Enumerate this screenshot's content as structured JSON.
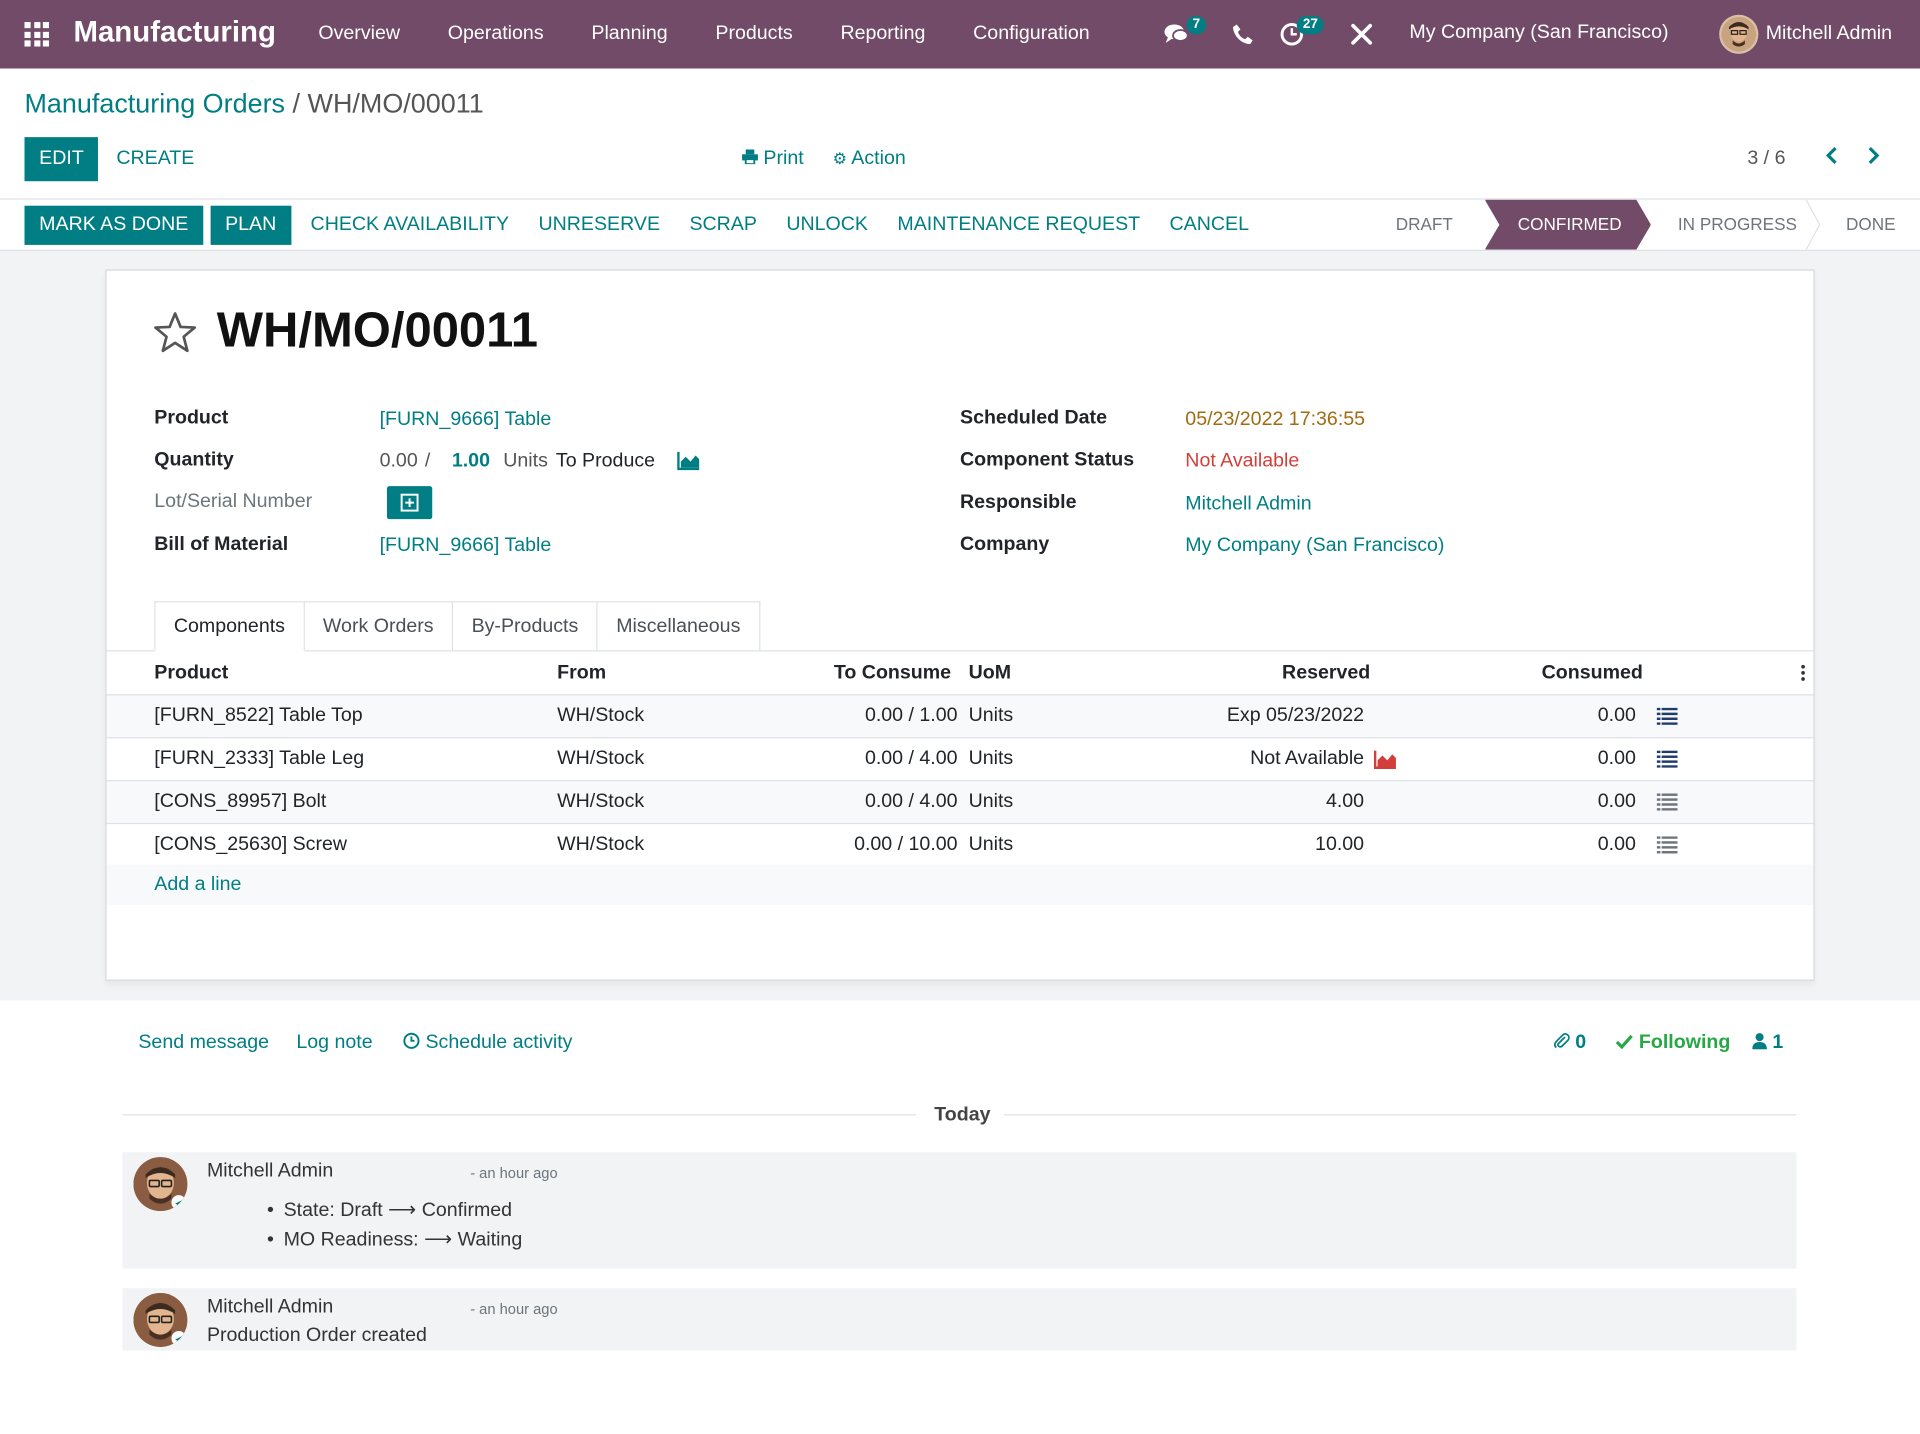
{
  "navbar": {
    "app_name": "Manufacturing",
    "menu": [
      "Overview",
      "Operations",
      "Planning",
      "Products",
      "Reporting",
      "Configuration"
    ],
    "messages_count": "7",
    "activities_count": "27",
    "company": "My Company (San Francisco)",
    "user": "Mitchell Admin"
  },
  "breadcrumb": {
    "parent": "Manufacturing Orders",
    "separator": "/",
    "current": "WH/MO/00011"
  },
  "toolbar": {
    "edit": "EDIT",
    "create": "CREATE",
    "print": "Print",
    "action": "Action",
    "pager": "3 / 6"
  },
  "statusbar": {
    "buttons": [
      "MARK AS DONE",
      "PLAN",
      "CHECK AVAILABILITY",
      "UNRESERVE",
      "SCRAP",
      "UNLOCK",
      "MAINTENANCE REQUEST",
      "CANCEL"
    ],
    "stages": [
      "DRAFT",
      "CONFIRMED",
      "IN PROGRESS",
      "DONE"
    ],
    "active_stage": "CONFIRMED"
  },
  "form": {
    "name": "WH/MO/00011",
    "product_label": "Product",
    "product": "[FURN_9666] Table",
    "quantity_label": "Quantity",
    "qty_produced": "0.00",
    "qty_sep": "/",
    "qty_total": "1.00",
    "uom": "Units",
    "to_produce": "To Produce",
    "lot_label": "Lot/Serial Number",
    "bom_label": "Bill of Material",
    "bom": "[FURN_9666] Table",
    "scheduled_label": "Scheduled Date",
    "scheduled": "05/23/2022 17:36:55",
    "component_status_label": "Component Status",
    "component_status": "Not Available",
    "responsible_label": "Responsible",
    "responsible": "Mitchell Admin",
    "company_label": "Company",
    "company": "My Company (San Francisco)"
  },
  "tabs": [
    "Components",
    "Work Orders",
    "By-Products",
    "Miscellaneous"
  ],
  "components": {
    "headers": {
      "product": "Product",
      "from": "From",
      "to_consume": "To Consume",
      "uom": "UoM",
      "reserved": "Reserved",
      "consumed": "Consumed"
    },
    "rows": [
      {
        "product": "[FURN_8522] Table Top",
        "from": "WH/Stock",
        "to_consume": "0.00 / 1.00",
        "uom": "Units",
        "reserved": "Exp 05/23/2022",
        "consumed": "0.00"
      },
      {
        "product": "[FURN_2333] Table Leg",
        "from": "WH/Stock",
        "to_consume": "0.00 / 4.00",
        "uom": "Units",
        "reserved": "Not Available",
        "consumed": "0.00"
      },
      {
        "product": "[CONS_89957] Bolt",
        "from": "WH/Stock",
        "to_consume": "0.00 / 4.00",
        "uom": "Units",
        "reserved": "4.00",
        "consumed": "0.00"
      },
      {
        "product": "[CONS_25630] Screw",
        "from": "WH/Stock",
        "to_consume": "0.00 / 10.00",
        "uom": "Units",
        "reserved": "10.00",
        "consumed": "0.00"
      }
    ],
    "add_line": "Add a line"
  },
  "chatter": {
    "send_message": "Send message",
    "log_note": "Log note",
    "schedule_activity": "Schedule activity",
    "attachments": "0",
    "following": "Following",
    "followers": "1",
    "separator": "Today",
    "messages": [
      {
        "author": "Mitchell Admin",
        "ago": "- an hour ago",
        "changes": [
          {
            "field": "State:",
            "from": "Draft",
            "to": "Confirmed"
          },
          {
            "field": "MO Readiness:",
            "from": "",
            "to": "Waiting"
          }
        ]
      },
      {
        "author": "Mitchell Admin",
        "ago": "- an hour ago",
        "body": "Production Order created"
      }
    ]
  },
  "colors": {
    "brand": "#714b67",
    "primary": "#017e84",
    "danger": "#d23f3a",
    "warning": "#a26a12",
    "success": "#28a745"
  },
  "icons": [
    "apps-icon",
    "chat-icon",
    "phone-icon",
    "activity-icon",
    "tools-icon",
    "print-icon",
    "gear-icon",
    "chevron-left-icon",
    "chevron-right-icon",
    "star-icon",
    "forecast-chart-icon",
    "plus-square-icon",
    "list-icon",
    "kebab-icon",
    "clock-icon",
    "paperclip-icon",
    "check-icon",
    "user-icon"
  ]
}
